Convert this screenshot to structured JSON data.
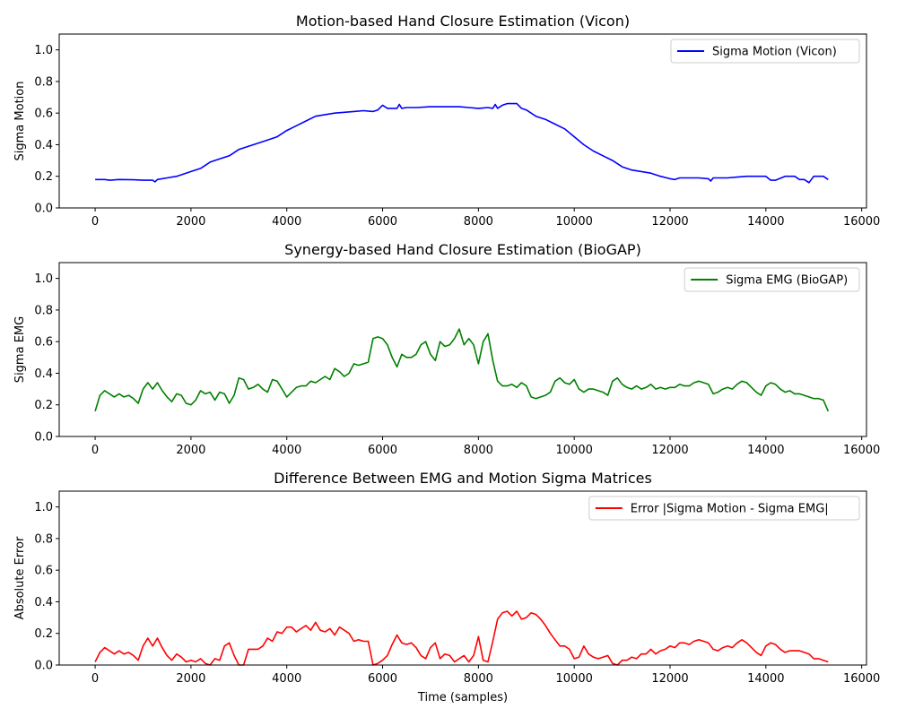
{
  "chart_data": [
    {
      "type": "line",
      "title": "Motion-based Hand Closure Estimation (Vicon)",
      "xlabel": "",
      "ylabel": "Sigma Motion",
      "xlim": [
        -750,
        16100
      ],
      "ylim": [
        0.0,
        1.1
      ],
      "xticks": [
        0,
        2000,
        4000,
        6000,
        8000,
        10000,
        12000,
        14000,
        16000
      ],
      "yticks": [
        "0.0",
        "0.2",
        "0.4",
        "0.6",
        "0.8",
        "1.0"
      ],
      "legend": "top-right",
      "series": [
        {
          "name": "Sigma Motion (Vicon)",
          "color": "#0000ff",
          "x": [
            0,
            200,
            300,
            500,
            800,
            1000,
            1200,
            1250,
            1300,
            1500,
            1700,
            1800,
            2000,
            2200,
            2300,
            2400,
            2600,
            2800,
            2900,
            3000,
            3200,
            3400,
            3600,
            3800,
            4000,
            4200,
            4400,
            4600,
            4800,
            5000,
            5200,
            5400,
            5600,
            5800,
            5900,
            6000,
            6100,
            6200,
            6300,
            6350,
            6400,
            6500,
            6700,
            7000,
            7300,
            7600,
            7800,
            8000,
            8200,
            8300,
            8350,
            8400,
            8500,
            8600,
            8800,
            8900,
            9000,
            9200,
            9400,
            9600,
            9800,
            10000,
            10200,
            10400,
            10600,
            10800,
            11000,
            11200,
            11400,
            11600,
            11800,
            12000,
            12100,
            12200,
            12400,
            12600,
            12800,
            12850,
            12900,
            13000,
            13200,
            13400,
            13600,
            13800,
            14000,
            14100,
            14200,
            14400,
            14600,
            14700,
            14800,
            14900,
            15000,
            15200,
            15300
          ],
          "values": [
            0.18,
            0.18,
            0.175,
            0.18,
            0.178,
            0.175,
            0.175,
            0.165,
            0.18,
            0.19,
            0.2,
            0.21,
            0.23,
            0.25,
            0.27,
            0.29,
            0.31,
            0.33,
            0.35,
            0.37,
            0.39,
            0.41,
            0.43,
            0.45,
            0.49,
            0.52,
            0.55,
            0.58,
            0.59,
            0.6,
            0.605,
            0.61,
            0.615,
            0.61,
            0.62,
            0.65,
            0.63,
            0.63,
            0.63,
            0.655,
            0.63,
            0.635,
            0.635,
            0.64,
            0.64,
            0.64,
            0.635,
            0.63,
            0.635,
            0.63,
            0.655,
            0.63,
            0.65,
            0.66,
            0.66,
            0.63,
            0.62,
            0.58,
            0.56,
            0.53,
            0.5,
            0.45,
            0.4,
            0.36,
            0.33,
            0.3,
            0.26,
            0.24,
            0.23,
            0.22,
            0.2,
            0.185,
            0.18,
            0.19,
            0.19,
            0.19,
            0.185,
            0.17,
            0.19,
            0.19,
            0.19,
            0.195,
            0.2,
            0.2,
            0.2,
            0.175,
            0.175,
            0.2,
            0.2,
            0.18,
            0.18,
            0.16,
            0.2,
            0.2,
            0.18
          ]
        }
      ]
    },
    {
      "type": "line",
      "title": "Synergy-based Hand Closure Estimation (BioGAP)",
      "xlabel": "",
      "ylabel": "Sigma EMG",
      "xlim": [
        -750,
        16100
      ],
      "ylim": [
        0.0,
        1.1
      ],
      "xticks": [
        0,
        2000,
        4000,
        6000,
        8000,
        10000,
        12000,
        14000,
        16000
      ],
      "yticks": [
        "0.0",
        "0.2",
        "0.4",
        "0.6",
        "0.8",
        "1.0"
      ],
      "legend": "top-right",
      "series": [
        {
          "name": "Sigma EMG (BioGAP)",
          "color": "#008000",
          "x": [
            0,
            100,
            200,
            300,
            400,
            500,
            600,
            700,
            800,
            900,
            1000,
            1100,
            1200,
            1300,
            1400,
            1500,
            1600,
            1700,
            1800,
            1900,
            2000,
            2100,
            2200,
            2300,
            2400,
            2500,
            2600,
            2700,
            2800,
            2900,
            3000,
            3100,
            3200,
            3300,
            3400,
            3500,
            3600,
            3700,
            3800,
            3900,
            4000,
            4100,
            4200,
            4300,
            4400,
            4500,
            4600,
            4700,
            4800,
            4900,
            5000,
            5100,
            5200,
            5300,
            5400,
            5500,
            5600,
            5700,
            5800,
            5900,
            6000,
            6100,
            6200,
            6300,
            6400,
            6500,
            6600,
            6700,
            6800,
            6900,
            7000,
            7100,
            7200,
            7300,
            7400,
            7500,
            7600,
            7700,
            7800,
            7900,
            8000,
            8100,
            8200,
            8300,
            8400,
            8500,
            8600,
            8700,
            8800,
            8900,
            9000,
            9100,
            9200,
            9300,
            9400,
            9500,
            9600,
            9700,
            9800,
            9900,
            10000,
            10100,
            10200,
            10300,
            10400,
            10500,
            10600,
            10700,
            10800,
            10900,
            11000,
            11100,
            11200,
            11300,
            11400,
            11500,
            11600,
            11700,
            11800,
            11900,
            12000,
            12100,
            12200,
            12300,
            12400,
            12500,
            12600,
            12700,
            12800,
            12900,
            13000,
            13100,
            13200,
            13300,
            13400,
            13500,
            13600,
            13700,
            13800,
            13900,
            14000,
            14100,
            14200,
            14300,
            14400,
            14500,
            14600,
            14700,
            14800,
            14900,
            15000,
            15100,
            15200,
            15300
          ],
          "values": [
            0.16,
            0.26,
            0.29,
            0.27,
            0.25,
            0.27,
            0.25,
            0.26,
            0.24,
            0.21,
            0.3,
            0.34,
            0.3,
            0.34,
            0.29,
            0.25,
            0.22,
            0.27,
            0.26,
            0.21,
            0.2,
            0.23,
            0.29,
            0.27,
            0.28,
            0.23,
            0.28,
            0.27,
            0.21,
            0.26,
            0.37,
            0.36,
            0.3,
            0.31,
            0.33,
            0.3,
            0.28,
            0.36,
            0.35,
            0.3,
            0.25,
            0.28,
            0.31,
            0.32,
            0.32,
            0.35,
            0.34,
            0.36,
            0.38,
            0.36,
            0.43,
            0.41,
            0.38,
            0.4,
            0.46,
            0.45,
            0.46,
            0.47,
            0.62,
            0.63,
            0.62,
            0.58,
            0.5,
            0.44,
            0.52,
            0.5,
            0.5,
            0.52,
            0.58,
            0.6,
            0.52,
            0.48,
            0.6,
            0.57,
            0.58,
            0.62,
            0.68,
            0.58,
            0.62,
            0.58,
            0.46,
            0.6,
            0.65,
            0.48,
            0.35,
            0.32,
            0.32,
            0.33,
            0.31,
            0.34,
            0.32,
            0.25,
            0.24,
            0.25,
            0.26,
            0.28,
            0.35,
            0.37,
            0.34,
            0.33,
            0.36,
            0.3,
            0.28,
            0.3,
            0.3,
            0.29,
            0.28,
            0.26,
            0.35,
            0.37,
            0.33,
            0.31,
            0.3,
            0.32,
            0.3,
            0.31,
            0.33,
            0.3,
            0.31,
            0.3,
            0.31,
            0.31,
            0.33,
            0.32,
            0.32,
            0.34,
            0.35,
            0.34,
            0.33,
            0.27,
            0.28,
            0.3,
            0.31,
            0.3,
            0.33,
            0.35,
            0.34,
            0.31,
            0.28,
            0.26,
            0.32,
            0.34,
            0.33,
            0.3,
            0.28,
            0.29,
            0.27,
            0.27,
            0.26,
            0.25,
            0.24,
            0.24,
            0.23,
            0.16
          ]
        }
      ]
    },
    {
      "type": "line",
      "title": "Difference Between EMG and Motion Sigma Matrices",
      "xlabel": "Time (samples)",
      "ylabel": "Absolute Error",
      "xlim": [
        -750,
        16100
      ],
      "ylim": [
        0.0,
        1.1
      ],
      "xticks": [
        0,
        2000,
        4000,
        6000,
        8000,
        10000,
        12000,
        14000,
        16000
      ],
      "yticks": [
        "0.0",
        "0.2",
        "0.4",
        "0.6",
        "0.8",
        "1.0"
      ],
      "legend": "top-right",
      "series": [
        {
          "name": "Error |Sigma Motion - Sigma EMG|",
          "color": "#ff0000",
          "x": [
            0,
            100,
            200,
            300,
            400,
            500,
            600,
            700,
            800,
            900,
            1000,
            1100,
            1200,
            1300,
            1400,
            1500,
            1600,
            1700,
            1800,
            1900,
            2000,
            2100,
            2200,
            2300,
            2400,
            2500,
            2600,
            2700,
            2800,
            2900,
            3000,
            3100,
            3200,
            3300,
            3400,
            3500,
            3600,
            3700,
            3800,
            3900,
            4000,
            4100,
            4200,
            4300,
            4400,
            4500,
            4600,
            4700,
            4800,
            4900,
            5000,
            5100,
            5200,
            5300,
            5400,
            5500,
            5600,
            5700,
            5800,
            5900,
            6000,
            6100,
            6200,
            6300,
            6400,
            6500,
            6600,
            6700,
            6800,
            6900,
            7000,
            7100,
            7200,
            7300,
            7400,
            7500,
            7600,
            7700,
            7800,
            7900,
            8000,
            8100,
            8200,
            8300,
            8400,
            8500,
            8600,
            8700,
            8800,
            8900,
            9000,
            9100,
            9200,
            9300,
            9400,
            9500,
            9600,
            9700,
            9800,
            9900,
            10000,
            10100,
            10200,
            10300,
            10400,
            10500,
            10600,
            10700,
            10800,
            10900,
            11000,
            11100,
            11200,
            11300,
            11400,
            11500,
            11600,
            11700,
            11800,
            11900,
            12000,
            12100,
            12200,
            12300,
            12400,
            12500,
            12600,
            12700,
            12800,
            12900,
            13000,
            13100,
            13200,
            13300,
            13400,
            13500,
            13600,
            13700,
            13800,
            13900,
            14000,
            14100,
            14200,
            14300,
            14400,
            14500,
            14600,
            14700,
            14800,
            14900,
            15000,
            15100,
            15200,
            15300
          ],
          "values": [
            0.02,
            0.08,
            0.11,
            0.09,
            0.07,
            0.09,
            0.07,
            0.08,
            0.06,
            0.03,
            0.12,
            0.17,
            0.12,
            0.17,
            0.11,
            0.06,
            0.03,
            0.07,
            0.05,
            0.02,
            0.03,
            0.02,
            0.04,
            0.01,
            0.0,
            0.04,
            0.03,
            0.12,
            0.14,
            0.06,
            0.0,
            0.0,
            0.1,
            0.1,
            0.1,
            0.12,
            0.17,
            0.15,
            0.21,
            0.2,
            0.24,
            0.24,
            0.21,
            0.23,
            0.25,
            0.22,
            0.27,
            0.22,
            0.21,
            0.23,
            0.19,
            0.24,
            0.22,
            0.2,
            0.15,
            0.16,
            0.15,
            0.15,
            0.0,
            0.01,
            0.03,
            0.06,
            0.13,
            0.19,
            0.14,
            0.13,
            0.14,
            0.11,
            0.06,
            0.04,
            0.11,
            0.14,
            0.04,
            0.07,
            0.06,
            0.02,
            0.04,
            0.06,
            0.02,
            0.06,
            0.18,
            0.03,
            0.02,
            0.15,
            0.29,
            0.33,
            0.34,
            0.31,
            0.34,
            0.29,
            0.3,
            0.33,
            0.32,
            0.29,
            0.25,
            0.2,
            0.16,
            0.12,
            0.12,
            0.1,
            0.04,
            0.05,
            0.12,
            0.07,
            0.05,
            0.04,
            0.05,
            0.06,
            0.01,
            0.0,
            0.03,
            0.03,
            0.05,
            0.04,
            0.07,
            0.07,
            0.1,
            0.07,
            0.09,
            0.1,
            0.12,
            0.11,
            0.14,
            0.14,
            0.13,
            0.15,
            0.16,
            0.15,
            0.14,
            0.1,
            0.09,
            0.11,
            0.12,
            0.11,
            0.14,
            0.16,
            0.14,
            0.11,
            0.08,
            0.06,
            0.12,
            0.14,
            0.13,
            0.1,
            0.08,
            0.09,
            0.09,
            0.09,
            0.08,
            0.07,
            0.04,
            0.04,
            0.03,
            0.02
          ]
        }
      ]
    }
  ]
}
